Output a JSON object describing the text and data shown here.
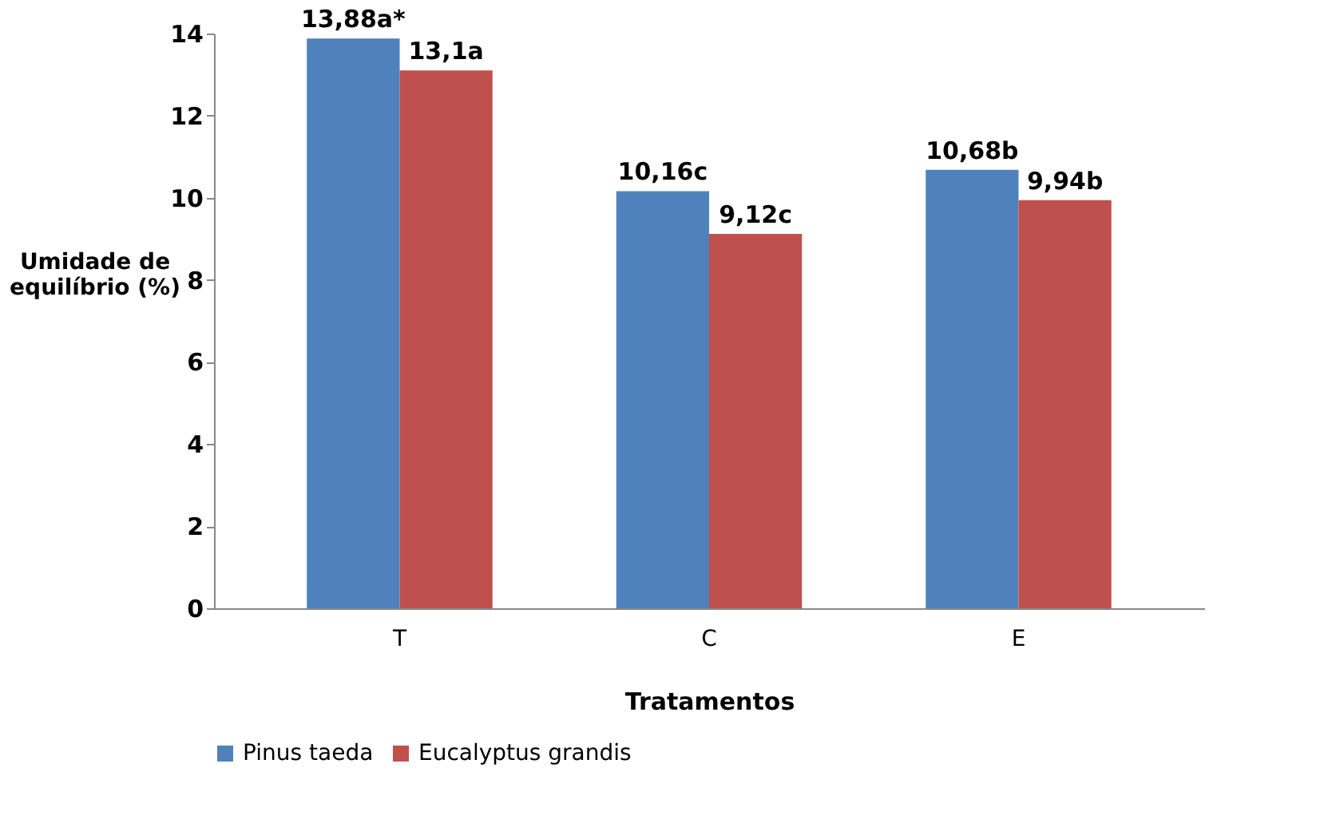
{
  "chart_data": {
    "type": "bar",
    "xlabel": "Tratamentos",
    "ylabel": "Umidade de\nequilíbrio (%)",
    "categories": [
      "T",
      "C",
      "E"
    ],
    "series": [
      {
        "name": "Pinus taeda",
        "color": "#4f81bd",
        "values": [
          13.88,
          10.16,
          10.68
        ],
        "value_labels": [
          "13,88a*",
          "10,16c",
          "10,68b"
        ]
      },
      {
        "name": "Eucalyptus grandis",
        "color": "#c0504d",
        "values": [
          13.1,
          9.12,
          9.94
        ],
        "value_labels": [
          "13,1a",
          "9,12c",
          "9,94b"
        ]
      }
    ],
    "ylim": [
      0,
      14
    ],
    "yticks": [
      0,
      2,
      4,
      6,
      8,
      10,
      12,
      14
    ],
    "grid": false,
    "legend": "bottom"
  }
}
